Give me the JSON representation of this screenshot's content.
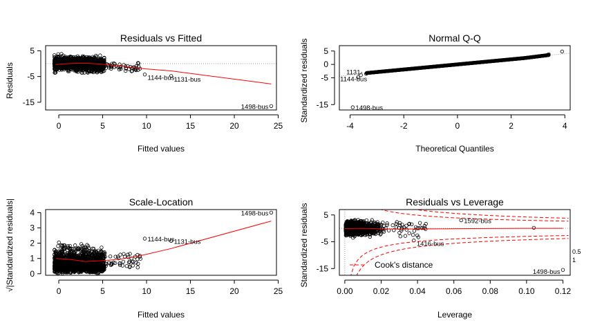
{
  "chart_data": [
    {
      "type": "scatter",
      "title": "Residuals vs Fitted",
      "xlabel": "Fitted values",
      "ylabel": "Residuals",
      "xlim": [
        -1.5,
        24.8
      ],
      "ylim": [
        -18,
        7
      ],
      "x_ticks": [
        "0",
        "5",
        "10",
        "15",
        "20",
        "25"
      ],
      "x_tick_values": [
        0,
        5,
        10,
        15,
        20,
        25
      ],
      "y_ticks": [
        "5",
        "-5",
        "-15"
      ],
      "y_tick_values": [
        5,
        -5,
        -15
      ],
      "reference_line": {
        "y": 0,
        "style": "dotted",
        "color": "#999999"
      },
      "smoother": {
        "color": "#ff0000",
        "x": [
          -0.3,
          0.5,
          1.5,
          2.5,
          3.5,
          4.5,
          5.5,
          6.5,
          7.5,
          8.5,
          9.8,
          12.8,
          24.2
        ],
        "y": [
          -0.3,
          -0.1,
          0.1,
          0.2,
          0.1,
          -0.1,
          -0.4,
          -0.8,
          -1.1,
          -1.5,
          -2.0,
          -2.8,
          -7.9
        ]
      },
      "annotations": [
        {
          "label": "1144-bus",
          "x": 9.8,
          "y": -4.2
        },
        {
          "label": "1131-bus",
          "x": 12.8,
          "y": -4.8
        },
        {
          "label": "1498-bus",
          "x": 24.2,
          "y": -16.5
        }
      ],
      "points_summary": {
        "cluster_x": [
          -0.5,
          5.2
        ],
        "cluster_y": [
          -3.5,
          3.8
        ],
        "sparse_x": [
          5.2,
          9.5
        ],
        "outliers": [
          [
            9.8,
            -4.2
          ],
          [
            12.8,
            -4.8
          ],
          [
            24.2,
            -16.5
          ]
        ]
      }
    },
    {
      "type": "scatter",
      "title": "Normal Q-Q",
      "xlabel": "Theoretical Quantiles",
      "ylabel": "Standardized residuals",
      "xlim": [
        -4.4,
        4.2
      ],
      "ylim": [
        -17,
        7
      ],
      "x_ticks": [
        "-4",
        "-2",
        "0",
        "2",
        "4"
      ],
      "x_tick_values": [
        -4,
        -2,
        0,
        2,
        4
      ],
      "y_ticks": [
        "5",
        "0",
        "-5",
        "-15"
      ],
      "y_tick_values": [
        5,
        0,
        -5,
        -15
      ],
      "reference_line": {
        "slope": 1,
        "intercept": 0,
        "style": "dotted",
        "color": "#999999"
      },
      "annotations": [
        {
          "label": "1131-",
          "x": -3.6,
          "y": -4.0
        },
        {
          "label": "1144-bus",
          "x": -3.7,
          "y": -4.8
        },
        {
          "label": "1498-bus",
          "x": -3.9,
          "y": -16.0
        }
      ],
      "points_summary": {
        "theoretical_range": [
          -3.9,
          3.9
        ],
        "tail_low": [
          [
            -3.9,
            -16.0
          ],
          [
            -3.7,
            -4.8
          ],
          [
            -3.6,
            -4.0
          ],
          [
            -3.4,
            -3.5
          ]
        ],
        "tail_high": [
          [
            3.4,
            3.8
          ],
          [
            3.9,
            4.8
          ]
        ]
      }
    },
    {
      "type": "scatter",
      "title": "Scale-Location",
      "xlabel": "Fitted values",
      "ylabel": "√|Standardized residuals|",
      "xlim": [
        -1.5,
        24.8
      ],
      "ylim": [
        -0.1,
        4.2
      ],
      "x_ticks": [
        "0",
        "5",
        "10",
        "15",
        "20",
        "25"
      ],
      "x_tick_values": [
        0,
        5,
        10,
        15,
        20,
        25
      ],
      "y_ticks": [
        "0",
        "1",
        "2",
        "3",
        "4"
      ],
      "y_tick_values": [
        0,
        1,
        2,
        3,
        4
      ],
      "smoother": {
        "color": "#ff0000",
        "x": [
          -0.3,
          1.0,
          2.0,
          3.0,
          4.0,
          5.0,
          6.0,
          7.0,
          8.0,
          9.8,
          12.8,
          24.2
        ],
        "y": [
          1.0,
          0.95,
          0.88,
          0.8,
          0.83,
          0.86,
          0.9,
          0.95,
          1.05,
          1.25,
          1.65,
          3.45
        ]
      },
      "annotations": [
        {
          "label": "1144-bus",
          "x": 9.8,
          "y": 2.3
        },
        {
          "label": "1131-bus",
          "x": 12.8,
          "y": 2.15
        },
        {
          "label": "1498-bus",
          "x": 24.2,
          "y": 4.0
        }
      ],
      "points_summary": {
        "cluster_x": [
          -0.5,
          5.2
        ],
        "cluster_y": [
          0,
          2.0
        ],
        "outliers": [
          [
            9.8,
            2.3
          ],
          [
            12.8,
            2.15
          ],
          [
            24.2,
            4.0
          ]
        ]
      }
    },
    {
      "type": "scatter",
      "title": "Residuals vs Leverage",
      "xlabel": "Leverage",
      "ylabel": "Standardized residuals",
      "xlim": [
        -0.003,
        0.124
      ],
      "ylim": [
        -17.5,
        7
      ],
      "x_ticks": [
        "0.00",
        "0.02",
        "0.04",
        "0.06",
        "0.08",
        "0.10",
        "0.12"
      ],
      "x_tick_values": [
        0,
        0.02,
        0.04,
        0.06,
        0.08,
        0.1,
        0.12
      ],
      "y_ticks": [
        "5",
        "-5",
        "-15"
      ],
      "y_tick_values": [
        5,
        -5,
        -15
      ],
      "smoother": {
        "color": "#ff0000",
        "x": [
          0.0,
          0.01,
          0.02,
          0.03,
          0.05,
          0.07,
          0.1,
          0.12
        ],
        "y": [
          -0.1,
          0.0,
          -0.2,
          -0.3,
          -0.2,
          -0.1,
          0.0,
          0.0
        ]
      },
      "cooks_distance": {
        "label": "Cook's distance",
        "levels": [
          "0.5",
          "1"
        ],
        "color": "#ff0000",
        "style": "dashed"
      },
      "annotations": [
        {
          "label": "1592-bus",
          "x": 0.064,
          "y": 3.0
        },
        {
          "label": "1416-bus",
          "x": 0.038,
          "y": -4.5
        },
        {
          "label": "1498-bus",
          "x": 0.12,
          "y": -15.5
        }
      ],
      "points_summary": {
        "cluster_x": [
          0.0,
          0.022
        ],
        "cluster_y": [
          -3.5,
          3.5
        ],
        "outliers": [
          [
            0.064,
            3.0
          ],
          [
            0.038,
            -4.5
          ],
          [
            0.104,
            0.2
          ],
          [
            0.12,
            -15.5
          ]
        ]
      }
    }
  ]
}
